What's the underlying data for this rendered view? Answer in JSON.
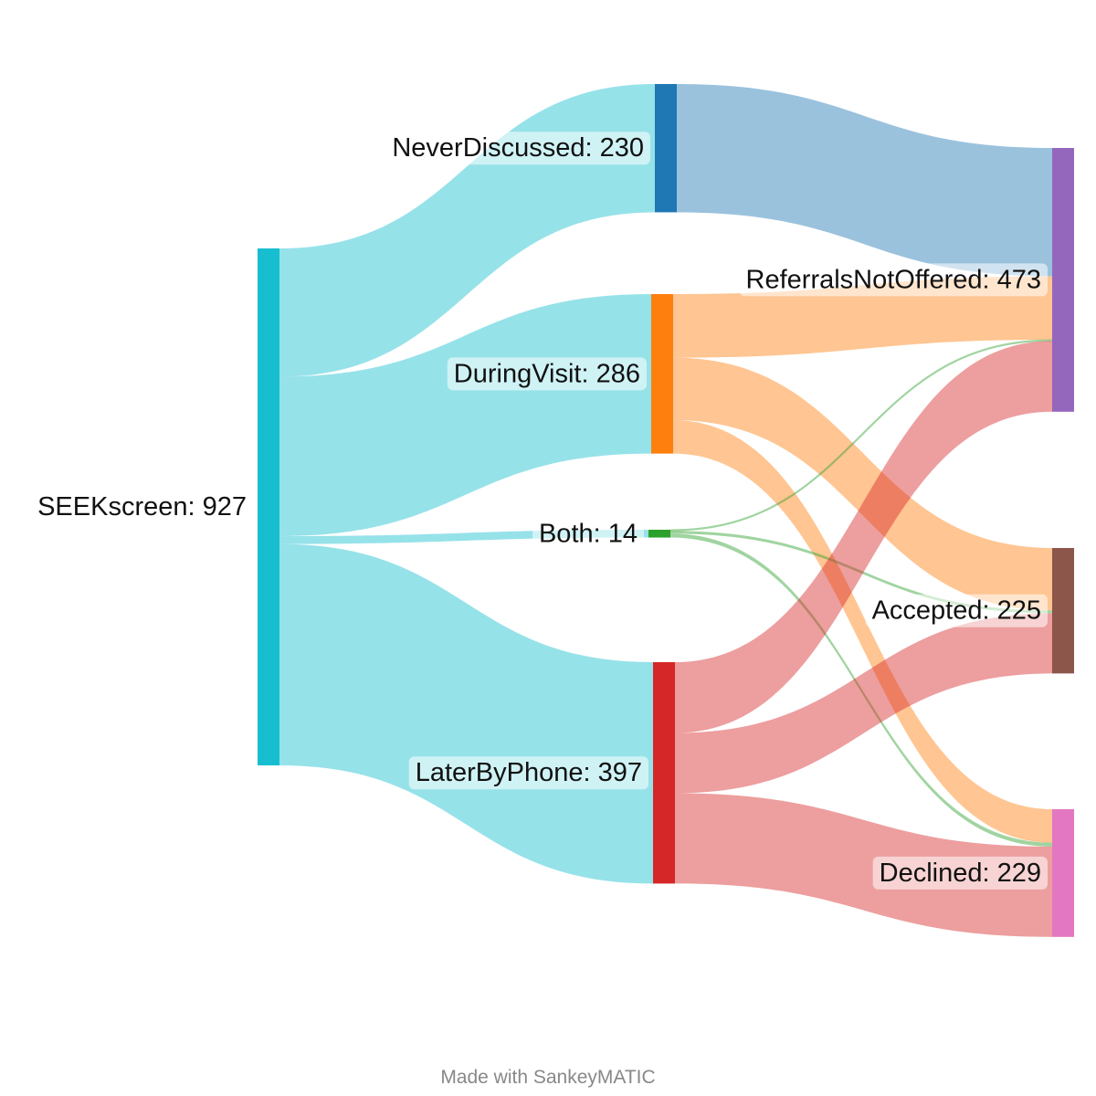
{
  "chart_data": {
    "type": "sankey",
    "nodes": [
      {
        "id": "SEEKscreen",
        "label": "SEEKscreen: 927",
        "value": 927,
        "color": "#17becf"
      },
      {
        "id": "NeverDiscussed",
        "label": "NeverDiscussed: 230",
        "value": 230,
        "color": "#1f77b4"
      },
      {
        "id": "DuringVisit",
        "label": "DuringVisit: 286",
        "value": 286,
        "color": "#ff7f0e"
      },
      {
        "id": "Both",
        "label": "Both: 14",
        "value": 14,
        "color": "#2ca02c"
      },
      {
        "id": "LaterByPhone",
        "label": "LaterByPhone: 397",
        "value": 397,
        "color": "#d62728"
      },
      {
        "id": "ReferralsNotOffered",
        "label": "ReferralsNotOffered: 473",
        "value": 473,
        "color": "#9467bd"
      },
      {
        "id": "Accepted",
        "label": "Accepted: 225",
        "value": 225,
        "color": "#8c564b"
      },
      {
        "id": "Declined",
        "label": "Declined: 229",
        "value": 229,
        "color": "#e377c2"
      }
    ],
    "links": [
      {
        "source": "SEEKscreen",
        "target": "NeverDiscussed",
        "value": 230
      },
      {
        "source": "SEEKscreen",
        "target": "DuringVisit",
        "value": 286
      },
      {
        "source": "SEEKscreen",
        "target": "Both",
        "value": 14
      },
      {
        "source": "SEEKscreen",
        "target": "LaterByPhone",
        "value": 397
      },
      {
        "source": "NeverDiscussed",
        "target": "ReferralsNotOffered",
        "value": 230
      },
      {
        "source": "DuringVisit",
        "target": "ReferralsNotOffered",
        "value": 114
      },
      {
        "source": "DuringVisit",
        "target": "Accepted",
        "value": 112
      },
      {
        "source": "DuringVisit",
        "target": "Declined",
        "value": 60
      },
      {
        "source": "Both",
        "target": "ReferralsNotOffered",
        "value": 2
      },
      {
        "source": "Both",
        "target": "Accepted",
        "value": 5
      },
      {
        "source": "Both",
        "target": "Declined",
        "value": 7
      },
      {
        "source": "LaterByPhone",
        "target": "ReferralsNotOffered",
        "value": 127
      },
      {
        "source": "LaterByPhone",
        "target": "Accepted",
        "value": 108
      },
      {
        "source": "LaterByPhone",
        "target": "Declined",
        "value": 162
      }
    ]
  },
  "footer": {
    "credit": "Made with SankeyMATIC"
  }
}
